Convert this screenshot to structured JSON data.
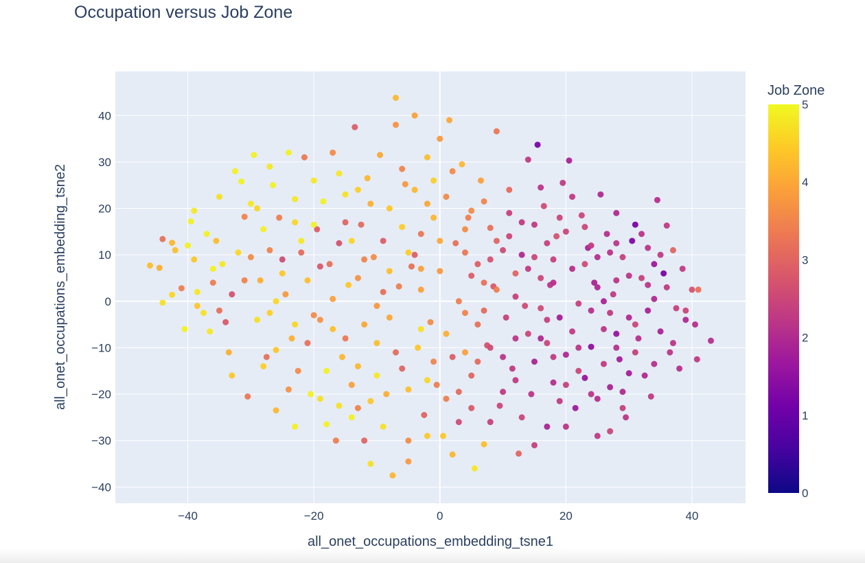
{
  "chart_data": {
    "type": "scatter",
    "title": "Occupation versus Job Zone",
    "xlabel": "all_onet_occupations_embedding_tsne1",
    "ylabel": "all_onet_occupations_embedding_tsne2",
    "xlim": [
      -51.5,
      48.5
    ],
    "ylim": [
      -43.5,
      49.5
    ],
    "x_ticks": [
      -40,
      -20,
      0,
      20,
      40
    ],
    "x_tick_labels": [
      "−40",
      "−20",
      "0",
      "20",
      "40"
    ],
    "y_ticks": [
      -40,
      -30,
      -20,
      -10,
      0,
      10,
      20,
      30,
      40
    ],
    "y_tick_labels": [
      "−40",
      "−30",
      "−20",
      "−10",
      "0",
      "10",
      "20",
      "30",
      "40"
    ],
    "grid": true,
    "colorbar": {
      "title": "Job Zone",
      "range": [
        0,
        5
      ],
      "ticks": [
        0,
        1,
        2,
        3,
        4,
        5
      ],
      "tick_labels": [
        "0",
        "1",
        "2",
        "3",
        "4",
        "5"
      ],
      "colors": [
        "#0d0887",
        "#46039f",
        "#7201a8",
        "#9c179e",
        "#bd3786",
        "#d8576b",
        "#ed7953",
        "#fb9f3a",
        "#fdca26",
        "#f0f921"
      ]
    },
    "point_color_scale": "plasma",
    "points": [
      [
        -46,
        7.7,
        4.3
      ],
      [
        -44.5,
        7.2,
        4.1
      ],
      [
        -44,
        13.4,
        3.2
      ],
      [
        -42.5,
        12.6,
        4.2
      ],
      [
        -42,
        11,
        4.3
      ],
      [
        -42.5,
        1.4,
        4.6
      ],
      [
        -41,
        2.8,
        3.4
      ],
      [
        -40.5,
        -6,
        4.9
      ],
      [
        -39.5,
        17.2,
        4.9
      ],
      [
        -39,
        19.5,
        4.8
      ],
      [
        -38.5,
        -1,
        4.4
      ],
      [
        -37.5,
        -2.5,
        4.7
      ],
      [
        -37,
        14.5,
        4.9
      ],
      [
        -36,
        4,
        3.4
      ],
      [
        -35.5,
        13,
        4.3
      ],
      [
        -35,
        22.5,
        4.7
      ],
      [
        -34.5,
        8,
        4.8
      ],
      [
        -34,
        -4.5,
        2.8
      ],
      [
        -33.5,
        -11,
        4.1
      ],
      [
        -33,
        1.5,
        2.7
      ],
      [
        -32.5,
        28,
        4.9
      ],
      [
        -31.5,
        25.8,
        4.9
      ],
      [
        -31,
        18.2,
        3.5
      ],
      [
        -30.5,
        -20.5,
        3.3
      ],
      [
        -30,
        9.5,
        3.6
      ],
      [
        -29.5,
        31.5,
        4.9
      ],
      [
        -29,
        20,
        4.6
      ],
      [
        -28.5,
        4.5,
        4.1
      ],
      [
        -28,
        15.5,
        4.9
      ],
      [
        -27.5,
        -12,
        3.2
      ],
      [
        -27,
        -2.5,
        4.5
      ],
      [
        -26.5,
        25,
        4.9
      ],
      [
        -26,
        -23.5,
        4.2
      ],
      [
        -25.5,
        18,
        3.4
      ],
      [
        -25,
        9,
        2.6
      ],
      [
        -24.5,
        1.5,
        3.8
      ],
      [
        -24,
        32,
        4.9
      ],
      [
        -23.5,
        -8,
        4.1
      ],
      [
        -23,
        22,
        4.8
      ],
      [
        -22.5,
        -15,
        3.6
      ],
      [
        -22,
        10.5,
        3.1
      ],
      [
        -21.5,
        31,
        3.3
      ],
      [
        -21,
        4.5,
        4.3
      ],
      [
        -20.5,
        -20,
        4.9
      ],
      [
        -20,
        26,
        4.8
      ],
      [
        -19.5,
        15.5,
        2.9
      ],
      [
        -19,
        -4,
        3.7
      ],
      [
        -18.5,
        21.5,
        4.9
      ],
      [
        -18,
        -26.5,
        4.9
      ],
      [
        -17.5,
        8,
        3.2
      ],
      [
        -17,
        32,
        3.6
      ],
      [
        -16.5,
        -30,
        3.4
      ],
      [
        -16,
        12.5,
        2.7
      ],
      [
        -15.5,
        -12,
        4.2
      ],
      [
        -15,
        23,
        4.7
      ],
      [
        -14.5,
        3.5,
        4.4
      ],
      [
        -14,
        -18,
        3.9
      ],
      [
        -13.5,
        37.5,
        2.9
      ],
      [
        -13,
        -23,
        3.5
      ],
      [
        -12.5,
        16.5,
        3.1
      ],
      [
        -12,
        -5,
        4.0
      ],
      [
        -11.5,
        26.5,
        4.2
      ],
      [
        -11,
        -35,
        4.7
      ],
      [
        -10.5,
        9.5,
        3.6
      ],
      [
        -10,
        -9,
        4.3
      ],
      [
        -9.5,
        31.5,
        4.0
      ],
      [
        -9,
        13,
        2.9
      ],
      [
        -8.5,
        -20,
        4.1
      ],
      [
        -8,
        20,
        4.4
      ],
      [
        -7.5,
        -37.5,
        4.2
      ],
      [
        -7,
        43.8,
        4.2
      ],
      [
        -6.5,
        3.2,
        3.4
      ],
      [
        -6,
        -14.5,
        3.0
      ],
      [
        -5.5,
        25.2,
        3.8
      ],
      [
        -5,
        -30,
        3.6
      ],
      [
        -4.5,
        7.5,
        3.2
      ],
      [
        -4,
        40,
        3.9
      ],
      [
        -3.5,
        -10,
        4.4
      ],
      [
        -3,
        14.5,
        3.3
      ],
      [
        -2.5,
        -24.5,
        3.0
      ],
      [
        -2,
        31,
        4.3
      ],
      [
        -1.5,
        -4.5,
        3.6
      ],
      [
        -1,
        18,
        4.2
      ],
      [
        -0.5,
        -18,
        3.4
      ],
      [
        0,
        6.5,
        3.8
      ],
      [
        0.5,
        -29,
        4.4
      ],
      [
        1,
        22.5,
        3.6
      ],
      [
        1.5,
        39,
        4.0
      ],
      [
        2,
        -12,
        2.9
      ],
      [
        2.5,
        12.5,
        3.2
      ],
      [
        3,
        -26,
        2.6
      ],
      [
        3.5,
        29.5,
        4.2
      ],
      [
        4,
        -2.5,
        3.5
      ],
      [
        4.5,
        18,
        3.4
      ],
      [
        5,
        -16,
        3.0
      ],
      [
        5.5,
        -36,
        4.8
      ],
      [
        6,
        8,
        2.9
      ],
      [
        6.5,
        26,
        3.9
      ],
      [
        7,
        -30.8,
        4.3
      ],
      [
        7.5,
        -9.5,
        2.7
      ],
      [
        8,
        15.8,
        3.2
      ],
      [
        8.5,
        3.2,
        2.8
      ],
      [
        9,
        36.6,
        3.3
      ],
      [
        9.5,
        -22.5,
        2.5
      ],
      [
        10,
        11,
        2.6
      ],
      [
        10.5,
        -3.5,
        2.4
      ],
      [
        11,
        24,
        3.1
      ],
      [
        11.5,
        -14.5,
        2.3
      ],
      [
        12,
        6,
        3.0
      ],
      [
        12.5,
        -32.8,
        3.0
      ],
      [
        13,
        17,
        2.3
      ],
      [
        13.5,
        -1,
        2.6
      ],
      [
        14,
        30.5,
        2.3
      ],
      [
        14.5,
        -20,
        2.2
      ],
      [
        15,
        9.5,
        2.5
      ],
      [
        15.5,
        33.7,
        1.2
      ],
      [
        16,
        -8,
        2.0
      ],
      [
        16.5,
        20.5,
        2.6
      ],
      [
        17,
        -27,
        1.9
      ],
      [
        17.5,
        3.5,
        2.2
      ],
      [
        18,
        -17.5,
        2.1
      ],
      [
        18.5,
        14,
        2.7
      ],
      [
        19,
        -3.5,
        1.8
      ],
      [
        19.5,
        25.5,
        2.3
      ],
      [
        20,
        -11.5,
        2.0
      ],
      [
        20.5,
        30.3,
        1.9
      ],
      [
        21,
        7,
        2.1
      ],
      [
        21.5,
        -23,
        1.7
      ],
      [
        22,
        -0.5,
        2.4
      ],
      [
        22.5,
        18.5,
        2.5
      ],
      [
        23,
        -16.5,
        1.6
      ],
      [
        23.5,
        11.5,
        1.9
      ],
      [
        24,
        -9.8,
        1.5
      ],
      [
        24.5,
        4,
        1.9
      ],
      [
        25,
        -29,
        2.3
      ],
      [
        25.5,
        23,
        2.0
      ],
      [
        26,
        -6,
        2.2
      ],
      [
        26.5,
        14.5,
        2.1
      ],
      [
        27,
        -18.5,
        1.9
      ],
      [
        27.5,
        1.5,
        2.3
      ],
      [
        28,
        19,
        2.0
      ],
      [
        28.5,
        -12.5,
        1.8
      ],
      [
        29,
        9.5,
        2.4
      ],
      [
        29.5,
        -25,
        2.2
      ],
      [
        30,
        -3.5,
        2.0
      ],
      [
        30.5,
        13,
        1.3
      ],
      [
        31,
        16.5,
        1.2
      ],
      [
        31.5,
        -8,
        2.1
      ],
      [
        32,
        5,
        2.4
      ],
      [
        32.5,
        -16,
        2.0
      ],
      [
        33,
        11.5,
        2.2
      ],
      [
        33.5,
        -20.5,
        2.3
      ],
      [
        34,
        0.5,
        2.0
      ],
      [
        34.5,
        21.8,
        2.1
      ],
      [
        35,
        -6.5,
        1.9
      ],
      [
        35.5,
        6,
        1.2
      ],
      [
        36,
        16.3,
        2.3
      ],
      [
        36.5,
        -11,
        2.2
      ],
      [
        37,
        11,
        3.0
      ],
      [
        37.5,
        -1.5,
        2.4
      ],
      [
        38,
        -14.5,
        2.1
      ],
      [
        38.5,
        7,
        2.3
      ],
      [
        39,
        -4,
        2.0
      ],
      [
        40,
        2.5,
        2.7
      ],
      [
        40.5,
        -5,
        2.1
      ],
      [
        41,
        2.5,
        3.2
      ],
      [
        40.8,
        -12.5,
        2.3
      ],
      [
        43,
        -8.5,
        2.1
      ],
      [
        -38.5,
        2,
        4.8
      ],
      [
        -36.5,
        -6.5,
        4.8
      ],
      [
        -32,
        10.5,
        4.6
      ],
      [
        -29,
        -4,
        4.7
      ],
      [
        -27,
        11,
        3.5
      ],
      [
        -26,
        -10.5,
        4.4
      ],
      [
        -23,
        -5,
        4.6
      ],
      [
        -21,
        -9,
        3.2
      ],
      [
        -20,
        16.5,
        4.9
      ],
      [
        -19,
        -21,
        4.7
      ],
      [
        -17,
        0.5,
        3.9
      ],
      [
        -16,
        27.5,
        4.8
      ],
      [
        -15,
        -8,
        3.3
      ],
      [
        -13,
        5,
        3.7
      ],
      [
        -12,
        -30,
        3.0
      ],
      [
        -11,
        21,
        4.1
      ],
      [
        -10,
        -1,
        3.8
      ],
      [
        -9,
        -27,
        4.7
      ],
      [
        -8,
        6.5,
        4.3
      ],
      [
        -7,
        -11,
        3.1
      ],
      [
        -6,
        28.5,
        3.5
      ],
      [
        -5,
        -19,
        4.3
      ],
      [
        -4,
        10,
        2.9
      ],
      [
        -3,
        -6,
        4.7
      ],
      [
        -2,
        21,
        4.0
      ],
      [
        -1,
        -13,
        3.5
      ],
      [
        1,
        -7,
        4.1
      ],
      [
        2,
        28,
        3.6
      ],
      [
        3,
        -19.5,
        3.1
      ],
      [
        4,
        10.5,
        3.3
      ],
      [
        5,
        -23,
        2.8
      ],
      [
        6,
        -5,
        3.2
      ],
      [
        7,
        21.5,
        3.5
      ],
      [
        8,
        -10,
        2.6
      ],
      [
        9,
        2.5,
        3.4
      ],
      [
        10,
        -19.5,
        2.3
      ],
      [
        11,
        14,
        2.5
      ],
      [
        12,
        -8,
        2.2
      ],
      [
        13,
        -25,
        2.5
      ],
      [
        14,
        7,
        2.3
      ],
      [
        15,
        -13,
        1.9
      ],
      [
        16,
        24.5,
        2.2
      ],
      [
        17,
        -4,
        2.4
      ],
      [
        18,
        9,
        2.4
      ],
      [
        19,
        -21.5,
        2.3
      ],
      [
        20,
        15,
        2.5
      ],
      [
        21,
        -6.5,
        2.3
      ],
      [
        22,
        -15,
        2.5
      ],
      [
        23,
        8,
        2.6
      ],
      [
        24,
        -20,
        2.2
      ],
      [
        25,
        3,
        2.0
      ],
      [
        26,
        -13.5,
        2.3
      ],
      [
        27,
        10.5,
        2.2
      ],
      [
        28,
        -7,
        1.6
      ],
      [
        29,
        -19.5,
        2.0
      ],
      [
        30,
        5.5,
        2.2
      ],
      [
        31,
        -11,
        2.4
      ],
      [
        33,
        -2,
        1.9
      ],
      [
        34,
        -13.5,
        2.1
      ],
      [
        36,
        3,
        2.3
      ],
      [
        37,
        -9,
        2.2
      ],
      [
        39,
        -2,
        2.5
      ],
      [
        -40,
        12,
        4.9
      ],
      [
        -35,
        -2,
        3.2
      ],
      [
        -30,
        21,
        4.8
      ],
      [
        -28,
        -14,
        4.5
      ],
      [
        -25,
        6,
        4.4
      ],
      [
        -22,
        13,
        4.8
      ],
      [
        -18,
        -15,
        4.9
      ],
      [
        -14,
        13,
        4.6
      ],
      [
        -10,
        -16,
        4.8
      ],
      [
        -6,
        16,
        4.5
      ],
      [
        -2,
        -29,
        4.4
      ],
      [
        0,
        35,
        3.8
      ],
      [
        3,
        0,
        3.4
      ],
      [
        6,
        -13,
        3.1
      ],
      [
        9,
        13,
        3.0
      ],
      [
        12,
        1,
        2.4
      ],
      [
        15,
        -31,
        2.4
      ],
      [
        18,
        4,
        2.1
      ],
      [
        21,
        22.5,
        2.3
      ],
      [
        24,
        -2,
        2.1
      ],
      [
        27,
        -28,
        2.5
      ],
      [
        30,
        -15.5,
        1.8
      ],
      [
        33,
        3.5,
        2.2
      ],
      [
        -44,
        -0.3,
        4.7
      ],
      [
        -39,
        9,
        4.4
      ],
      [
        -33,
        -16,
        4.4
      ],
      [
        -27,
        29,
        4.8
      ],
      [
        -24,
        -19,
        3.7
      ],
      [
        -19,
        7.5,
        2.8
      ],
      [
        -16,
        -22.5,
        4.7
      ],
      [
        -13,
        24,
        4.5
      ],
      [
        -9,
        2,
        3.2
      ],
      [
        -5,
        -34.5,
        3.8
      ],
      [
        -1,
        26,
        4.5
      ],
      [
        2,
        -33,
        4.2
      ],
      [
        4,
        15.5,
        3.6
      ],
      [
        8,
        -26,
        2.4
      ],
      [
        11,
        19,
        2.4
      ],
      [
        14,
        -7,
        2.5
      ],
      [
        17,
        12.5,
        2.4
      ],
      [
        20,
        -27,
        2.2
      ],
      [
        23,
        16,
        2.5
      ],
      [
        26,
        0,
        1.9
      ],
      [
        29,
        -23,
        2.4
      ],
      [
        32,
        14.5,
        2.2
      ],
      [
        35,
        10,
        2.3
      ],
      [
        -31,
        4.5,
        3.5
      ],
      [
        -23,
        17,
        4.6
      ],
      [
        -17,
        -6,
        4.3
      ],
      [
        -11,
        -21.5,
        4.4
      ],
      [
        -7,
        38,
        3.7
      ],
      [
        -3,
        2.5,
        3.9
      ],
      [
        1,
        -21,
        3.4
      ],
      [
        5,
        5.5,
        2.9
      ],
      [
        10,
        -12,
        2.2
      ],
      [
        13,
        10,
        2.0
      ],
      [
        16,
        -1.5,
        2.6
      ],
      [
        19,
        18,
        2.5
      ],
      [
        22,
        -10,
        2.2
      ],
      [
        25,
        9.5,
        2.1
      ],
      [
        28,
        4.5,
        2.2
      ],
      [
        31,
        -5,
        2.5
      ],
      [
        34,
        8,
        1.7
      ],
      [
        -36,
        7,
        4.9
      ],
      [
        -26,
        0,
        4.6
      ],
      [
        -20,
        -3,
        3.6
      ],
      [
        -14,
        -25,
        4.9
      ],
      [
        -8,
        -3.5,
        4.0
      ],
      [
        -4,
        24,
        4.2
      ],
      [
        0,
        13,
        4.0
      ],
      [
        4,
        -11,
        3.9
      ],
      [
        7,
        4,
        3.2
      ],
      [
        12,
        -17,
        2.3
      ],
      [
        16,
        5,
        2.5
      ],
      [
        20,
        -18,
        2.4
      ],
      [
        24,
        12,
        2.3
      ],
      [
        28,
        -10,
        2.1
      ],
      [
        -15,
        17,
        3.0
      ],
      [
        -5,
        10.5,
        4.5
      ],
      [
        5,
        19.5,
        3.6
      ],
      [
        15,
        16.5,
        2.3
      ],
      [
        25,
        -21,
        2.1
      ],
      [
        -12,
        9,
        3.5
      ],
      [
        -2,
        -17,
        4.6
      ],
      [
        8,
        9,
        2.7
      ],
      [
        18,
        -12,
        2.3
      ],
      [
        28,
        12.5,
        2.2
      ],
      [
        -23,
        -27,
        4.9
      ],
      [
        -13,
        -14,
        4.2
      ],
      [
        -3,
        7,
        3.9
      ],
      [
        7,
        -2,
        3.1
      ],
      [
        17,
        -9,
        2.5
      ],
      [
        27,
        -2.5,
        2.3
      ]
    ]
  }
}
